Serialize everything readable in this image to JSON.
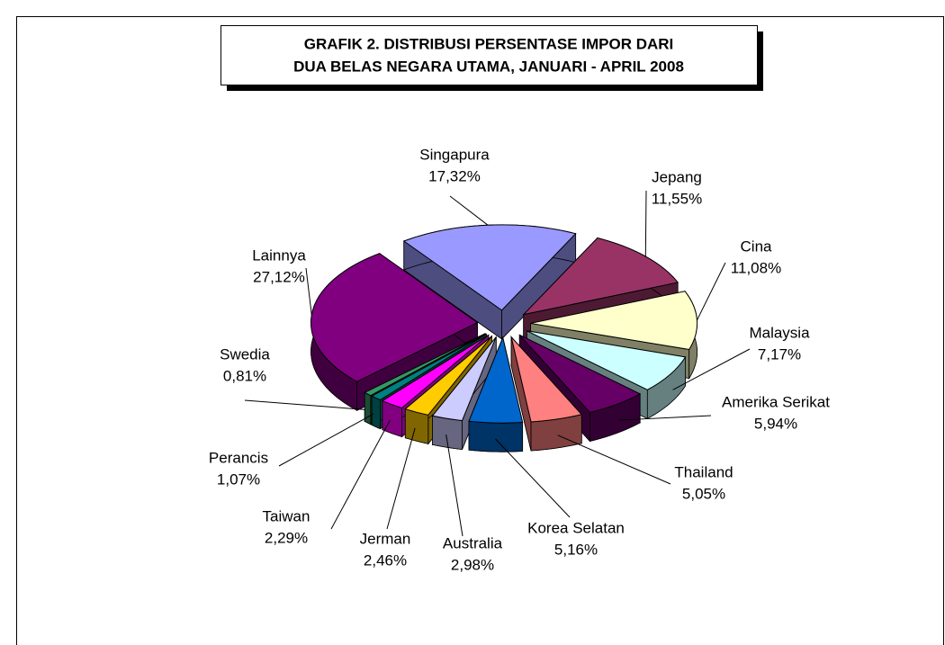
{
  "chart_data": {
    "type": "pie",
    "title_lines": [
      "GRAFIK 2. DISTRIBUSI  PERSENTASE IMPOR DARI",
      "DUA BELAS NEGARA UTAMA, JANUARI - APRIL 2008"
    ],
    "categories": [
      "Singapura",
      "Jepang",
      "Cina",
      "Malaysia",
      "Amerika Serikat",
      "Thailand",
      "Korea Selatan",
      "Australia",
      "Jerman",
      "Taiwan",
      "Perancis",
      "Swedia",
      "Lainnya"
    ],
    "values": [
      17.32,
      11.55,
      11.08,
      7.17,
      5.94,
      5.05,
      5.16,
      2.98,
      2.46,
      2.29,
      1.07,
      0.81,
      27.12
    ],
    "value_labels": [
      "17,32%",
      "11,55%",
      "11,08%",
      "7,17%",
      "5,94%",
      "5,05%",
      "5,16%",
      "2,98%",
      "2,46%",
      "2,29%",
      "1,07%",
      "0,81%",
      "27,12%"
    ],
    "colors": [
      "#9999ff",
      "#993366",
      "#ffffcc",
      "#ccffff",
      "#660066",
      "#ff8080",
      "#0066cc",
      "#ccccff",
      "#ffcc00",
      "#ff00ff",
      "#008080",
      "#339966",
      "#800080"
    ]
  }
}
